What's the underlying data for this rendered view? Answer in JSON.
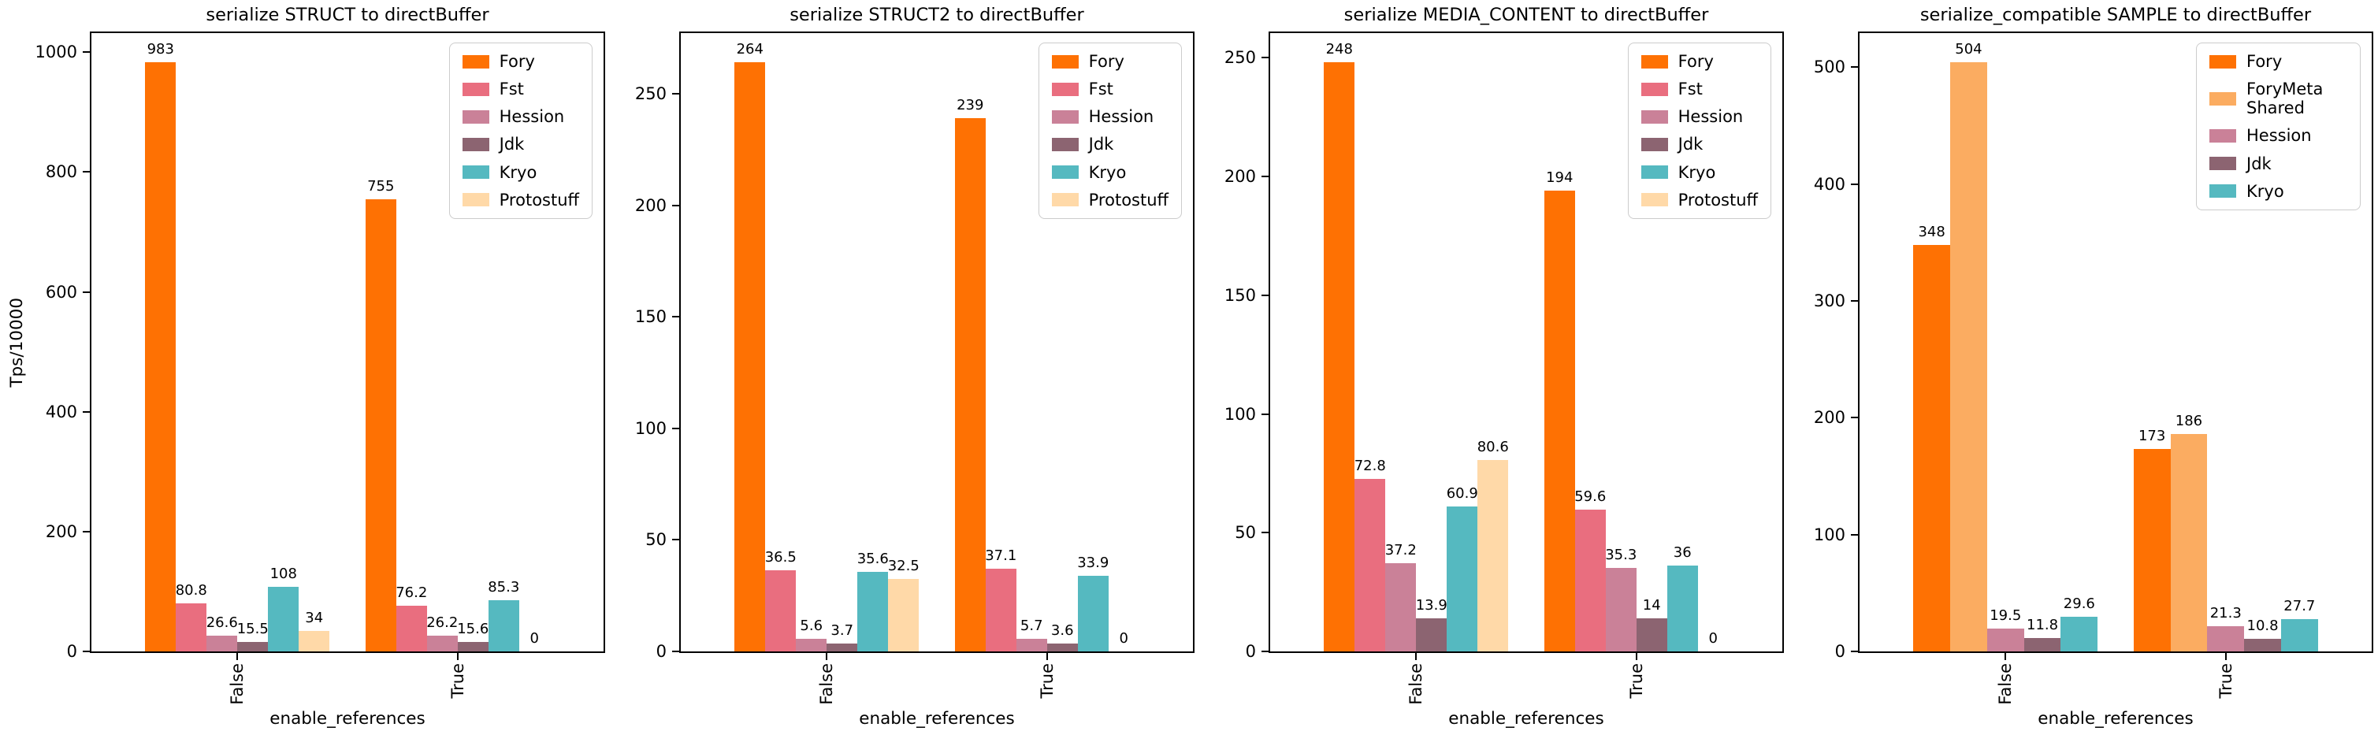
{
  "figure": {
    "background": "#ffffff",
    "text_color": "#000000",
    "spine_color": "#000000",
    "legend_border_color": "#cccccc"
  },
  "chart_data": [
    {
      "type": "bar",
      "title": "serialize STRUCT to directBuffer",
      "xlabel": "enable_references",
      "ylabel": "Tps/10000",
      "categories": [
        "False",
        "True"
      ],
      "yticks": [
        0,
        200,
        400,
        600,
        800,
        1000
      ],
      "ylim": [
        0,
        1032
      ],
      "grid": false,
      "legend_position": "upper right",
      "series": [
        {
          "name": "Fory",
          "color": "#fe7103",
          "values": [
            983,
            755
          ],
          "labels": [
            "983",
            "755"
          ]
        },
        {
          "name": "Fst",
          "color": "#e96e7f",
          "values": [
            80.8,
            76.2
          ],
          "labels": [
            "80.8",
            "76.2"
          ]
        },
        {
          "name": "Hession",
          "color": "#ca8198",
          "values": [
            26.6,
            26.2
          ],
          "labels": [
            "26.6",
            "26.2"
          ]
        },
        {
          "name": "Jdk",
          "color": "#8c6471",
          "values": [
            15.5,
            15.6
          ],
          "labels": [
            "15.5",
            "15.6"
          ]
        },
        {
          "name": "Kryo",
          "color": "#55b9c0",
          "values": [
            108,
            85.3
          ],
          "labels": [
            "108",
            "85.3"
          ]
        },
        {
          "name": "Protostuff",
          "color": "#ffd9a8",
          "values": [
            34,
            0
          ],
          "labels": [
            "34",
            "0"
          ]
        }
      ]
    },
    {
      "type": "bar",
      "title": "serialize STRUCT2 to directBuffer",
      "xlabel": "enable_references",
      "ylabel": "",
      "categories": [
        "False",
        "True"
      ],
      "yticks": [
        0,
        50,
        100,
        150,
        200,
        250
      ],
      "ylim": [
        0,
        277.2
      ],
      "grid": false,
      "legend_position": "upper right",
      "series": [
        {
          "name": "Fory",
          "color": "#fe7103",
          "values": [
            264,
            239
          ],
          "labels": [
            "264",
            "239"
          ]
        },
        {
          "name": "Fst",
          "color": "#e96e7f",
          "values": [
            36.5,
            37.1
          ],
          "labels": [
            "36.5",
            "37.1"
          ]
        },
        {
          "name": "Hession",
          "color": "#ca8198",
          "values": [
            5.6,
            5.7
          ],
          "labels": [
            "5.6",
            "5.7"
          ]
        },
        {
          "name": "Jdk",
          "color": "#8c6471",
          "values": [
            3.7,
            3.6
          ],
          "labels": [
            "3.7",
            "3.6"
          ]
        },
        {
          "name": "Kryo",
          "color": "#55b9c0",
          "values": [
            35.6,
            33.9
          ],
          "labels": [
            "35.6",
            "33.9"
          ]
        },
        {
          "name": "Protostuff",
          "color": "#ffd9a8",
          "values": [
            32.5,
            0
          ],
          "labels": [
            "32.5",
            "0"
          ]
        }
      ]
    },
    {
      "type": "bar",
      "title": "serialize MEDIA_CONTENT to directBuffer",
      "xlabel": "enable_references",
      "ylabel": "",
      "categories": [
        "False",
        "True"
      ],
      "yticks": [
        0,
        50,
        100,
        150,
        200,
        250
      ],
      "ylim": [
        0,
        260.4
      ],
      "grid": false,
      "legend_position": "upper right",
      "series": [
        {
          "name": "Fory",
          "color": "#fe7103",
          "values": [
            248,
            194
          ],
          "labels": [
            "248",
            "194"
          ]
        },
        {
          "name": "Fst",
          "color": "#e96e7f",
          "values": [
            72.8,
            59.6
          ],
          "labels": [
            "72.8",
            "59.6"
          ]
        },
        {
          "name": "Hession",
          "color": "#ca8198",
          "values": [
            37.2,
            35.3
          ],
          "labels": [
            "37.2",
            "35.3"
          ]
        },
        {
          "name": "Jdk",
          "color": "#8c6471",
          "values": [
            13.9,
            14
          ],
          "labels": [
            "13.9",
            "14"
          ]
        },
        {
          "name": "Kryo",
          "color": "#55b9c0",
          "values": [
            60.9,
            36
          ],
          "labels": [
            "60.9",
            "36"
          ]
        },
        {
          "name": "Protostuff",
          "color": "#ffd9a8",
          "values": [
            80.6,
            0
          ],
          "labels": [
            "80.6",
            "0"
          ]
        }
      ]
    },
    {
      "type": "bar",
      "title": "serialize_compatible SAMPLE to directBuffer",
      "xlabel": "enable_references",
      "ylabel": "",
      "categories": [
        "False",
        "True"
      ],
      "yticks": [
        0,
        100,
        200,
        300,
        400,
        500
      ],
      "ylim": [
        0,
        529.2
      ],
      "grid": false,
      "legend_position": "upper right",
      "series": [
        {
          "name": "Fory",
          "color": "#fe7103",
          "values": [
            348,
            173
          ],
          "labels": [
            "348",
            "173"
          ]
        },
        {
          "name": "ForyMeta Shared",
          "color": "#fbac61",
          "values": [
            504,
            186
          ],
          "labels": [
            "504",
            "186"
          ]
        },
        {
          "name": "Hession",
          "color": "#ca8198",
          "values": [
            19.5,
            21.3
          ],
          "labels": [
            "19.5",
            "21.3"
          ]
        },
        {
          "name": "Jdk",
          "color": "#8c6471",
          "values": [
            11.8,
            10.8
          ],
          "labels": [
            "11.8",
            "10.8"
          ]
        },
        {
          "name": "Kryo",
          "color": "#55b9c0",
          "values": [
            29.6,
            27.7
          ],
          "labels": [
            "29.6",
            "27.7"
          ]
        }
      ]
    }
  ]
}
